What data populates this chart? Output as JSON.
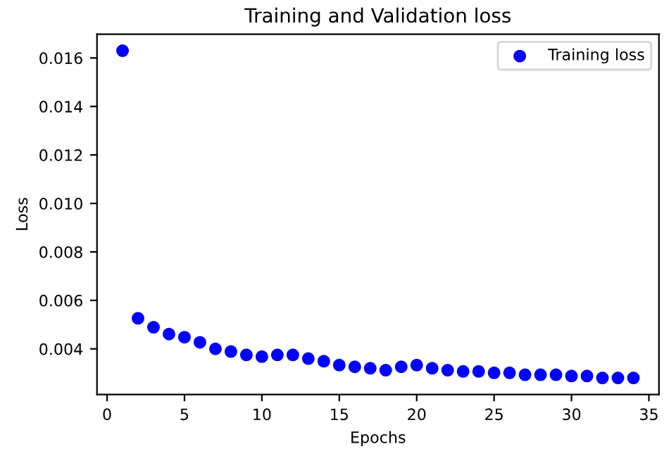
{
  "chart_data": {
    "type": "scatter",
    "title": "Training and Validation loss",
    "xlabel": "Epochs",
    "ylabel": "Loss",
    "x": [
      1,
      2,
      3,
      4,
      5,
      6,
      7,
      8,
      9,
      10,
      11,
      12,
      13,
      14,
      15,
      16,
      17,
      18,
      19,
      20,
      21,
      22,
      23,
      24,
      25,
      26,
      27,
      28,
      29,
      30,
      31,
      32,
      33,
      34
    ],
    "series": [
      {
        "name": "Training loss",
        "color": "#0000ff",
        "values": [
          0.0163,
          0.00526,
          0.00489,
          0.00461,
          0.00448,
          0.00427,
          0.004,
          0.00389,
          0.00375,
          0.00368,
          0.00375,
          0.00375,
          0.0036,
          0.00349,
          0.00333,
          0.00326,
          0.0032,
          0.00312,
          0.00326,
          0.00333,
          0.0032,
          0.00312,
          0.00307,
          0.00307,
          0.00301,
          0.00301,
          0.00293,
          0.00293,
          0.00293,
          0.00288,
          0.00288,
          0.0028,
          0.0028,
          0.0028
        ]
      }
    ],
    "xlim": [
      -0.65,
      35.65
    ],
    "ylim": [
      0.00212,
      0.01698
    ],
    "xticks": [
      0,
      5,
      10,
      15,
      20,
      25,
      30,
      35
    ],
    "yticks": [
      {
        "value": 0.004,
        "label": "0.004"
      },
      {
        "value": 0.006,
        "label": "0.006"
      },
      {
        "value": 0.008,
        "label": "0.008"
      },
      {
        "value": 0.01,
        "label": "0.010"
      },
      {
        "value": 0.012,
        "label": "0.012"
      },
      {
        "value": 0.014,
        "label": "0.014"
      },
      {
        "value": 0.016,
        "label": "0.016"
      }
    ],
    "marker": "circle",
    "legend": "top right",
    "grid": false
  }
}
